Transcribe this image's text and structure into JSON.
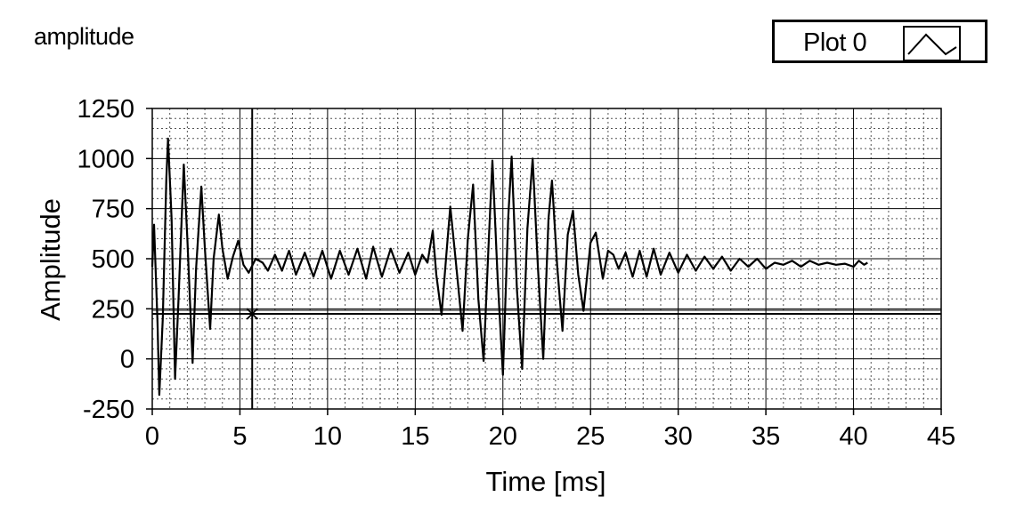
{
  "window": {
    "title": "amplitude"
  },
  "legend": {
    "label": "Plot 0",
    "icon": "line-plot-icon"
  },
  "chart_data": {
    "type": "line",
    "xlabel": "Time  [ms]",
    "ylabel": "Amplitude",
    "xlim": [
      0,
      45
    ],
    "ylim": [
      -250,
      1250
    ],
    "xticks": [
      "0",
      "5",
      "10",
      "15",
      "20",
      "25",
      "30",
      "35",
      "40",
      "45"
    ],
    "yticks": [
      "-250",
      "0",
      "250",
      "500",
      "750",
      "1000",
      "1250"
    ],
    "grid": true,
    "cursor": {
      "x": 5.7,
      "y": 225
    },
    "series": [
      {
        "name": "Plot 0",
        "points": [
          [
            0.0,
            460
          ],
          [
            0.1,
            670
          ],
          [
            0.3,
            180
          ],
          [
            0.4,
            -180
          ],
          [
            0.6,
            200
          ],
          [
            0.8,
            900
          ],
          [
            0.9,
            1100
          ],
          [
            1.1,
            700
          ],
          [
            1.3,
            -100
          ],
          [
            1.5,
            300
          ],
          [
            1.8,
            970
          ],
          [
            2.0,
            600
          ],
          [
            2.3,
            -20
          ],
          [
            2.5,
            450
          ],
          [
            2.8,
            860
          ],
          [
            3.0,
            550
          ],
          [
            3.3,
            150
          ],
          [
            3.5,
            500
          ],
          [
            3.8,
            720
          ],
          [
            4.0,
            550
          ],
          [
            4.3,
            400
          ],
          [
            4.6,
            510
          ],
          [
            4.9,
            590
          ],
          [
            5.2,
            470
          ],
          [
            5.5,
            430
          ],
          [
            5.9,
            500
          ],
          [
            6.3,
            480
          ],
          [
            6.6,
            440
          ],
          [
            7.0,
            520
          ],
          [
            7.4,
            440
          ],
          [
            7.8,
            540
          ],
          [
            8.2,
            420
          ],
          [
            8.7,
            530
          ],
          [
            9.2,
            410
          ],
          [
            9.7,
            540
          ],
          [
            10.2,
            400
          ],
          [
            10.7,
            540
          ],
          [
            11.2,
            420
          ],
          [
            11.7,
            550
          ],
          [
            12.2,
            400
          ],
          [
            12.6,
            560
          ],
          [
            13.1,
            410
          ],
          [
            13.6,
            550
          ],
          [
            14.1,
            430
          ],
          [
            14.6,
            530
          ],
          [
            15.0,
            420
          ],
          [
            15.4,
            520
          ],
          [
            15.7,
            480
          ],
          [
            16.0,
            640
          ],
          [
            16.2,
            420
          ],
          [
            16.5,
            220
          ],
          [
            16.8,
            550
          ],
          [
            17.0,
            760
          ],
          [
            17.3,
            500
          ],
          [
            17.7,
            140
          ],
          [
            18.0,
            600
          ],
          [
            18.3,
            870
          ],
          [
            18.6,
            300
          ],
          [
            18.9,
            -10
          ],
          [
            19.2,
            600
          ],
          [
            19.4,
            990
          ],
          [
            19.7,
            400
          ],
          [
            20.0,
            -80
          ],
          [
            20.3,
            700
          ],
          [
            20.5,
            1010
          ],
          [
            20.8,
            350
          ],
          [
            21.1,
            -50
          ],
          [
            21.4,
            650
          ],
          [
            21.7,
            1000
          ],
          [
            22.0,
            450
          ],
          [
            22.3,
            0
          ],
          [
            22.6,
            700
          ],
          [
            22.8,
            890
          ],
          [
            23.1,
            460
          ],
          [
            23.4,
            140
          ],
          [
            23.7,
            620
          ],
          [
            24.0,
            740
          ],
          [
            24.3,
            420
          ],
          [
            24.6,
            240
          ],
          [
            25.0,
            580
          ],
          [
            25.3,
            630
          ],
          [
            25.7,
            400
          ],
          [
            26.0,
            540
          ],
          [
            26.3,
            520
          ],
          [
            26.6,
            450
          ],
          [
            27.0,
            530
          ],
          [
            27.4,
            410
          ],
          [
            27.8,
            540
          ],
          [
            28.2,
            410
          ],
          [
            28.6,
            550
          ],
          [
            29.0,
            420
          ],
          [
            29.5,
            530
          ],
          [
            30.0,
            430
          ],
          [
            30.5,
            520
          ],
          [
            31.0,
            440
          ],
          [
            31.5,
            510
          ],
          [
            32.0,
            450
          ],
          [
            32.5,
            510
          ],
          [
            33.0,
            440
          ],
          [
            33.5,
            500
          ],
          [
            34.0,
            460
          ],
          [
            34.5,
            500
          ],
          [
            35.0,
            450
          ],
          [
            35.5,
            480
          ],
          [
            36.0,
            470
          ],
          [
            36.5,
            490
          ],
          [
            37.0,
            460
          ],
          [
            37.5,
            490
          ],
          [
            38.0,
            470
          ],
          [
            38.5,
            480
          ],
          [
            39.0,
            470
          ],
          [
            39.5,
            475
          ],
          [
            40.0,
            460
          ],
          [
            40.3,
            490
          ],
          [
            40.6,
            470
          ],
          [
            40.8,
            480
          ]
        ]
      }
    ]
  }
}
